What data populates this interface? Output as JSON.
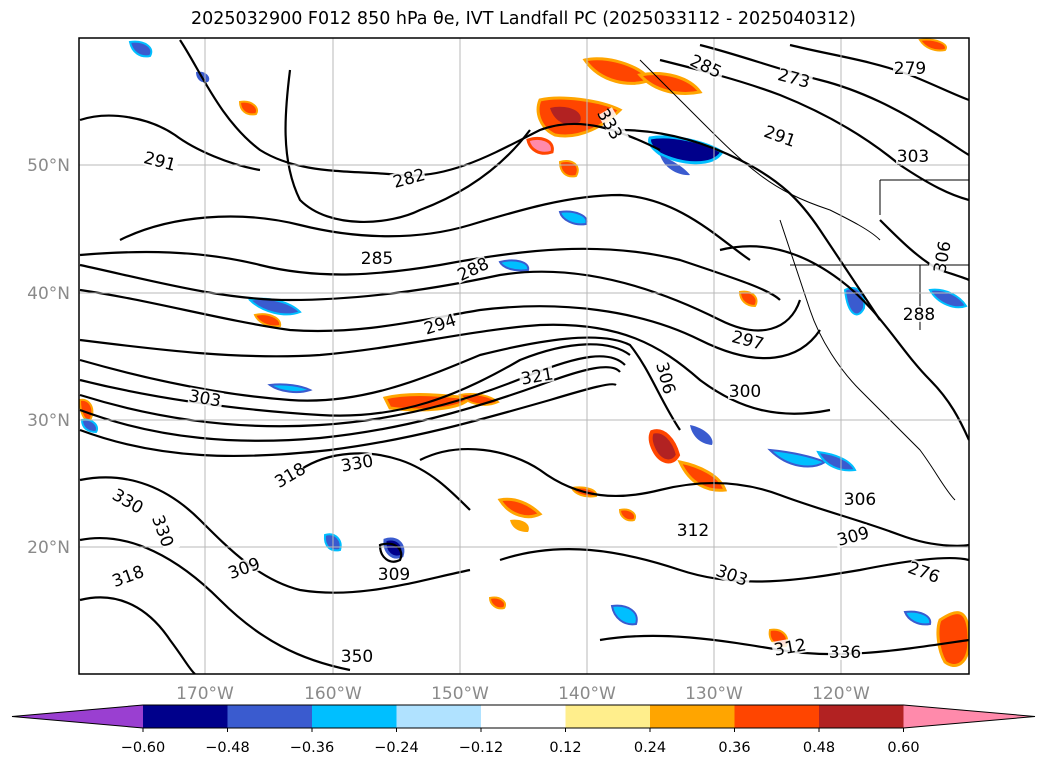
{
  "title": "2025032900 F012 850 hPa θe, IVT Landfall PC (2025033112 - 2025040312)",
  "map": {
    "lat_labels": [
      "50°N",
      "40°N",
      "30°N",
      "20°N"
    ],
    "lon_labels": [
      "170°W",
      "160°W",
      "150°W",
      "140°W",
      "130°W",
      "120°W"
    ],
    "gridlines": true,
    "contour_labels": [
      {
        "text": "291",
        "rot": 15
      },
      {
        "text": "282",
        "rot": -15
      },
      {
        "text": "285",
        "rot": 0
      },
      {
        "text": "288",
        "rot": -25
      },
      {
        "text": "294",
        "rot": -18
      },
      {
        "text": "297",
        "rot": 15
      },
      {
        "text": "300",
        "rot": 0
      },
      {
        "text": "303",
        "rot": 10
      },
      {
        "text": "306",
        "rot": 75
      },
      {
        "text": "321",
        "rot": -10
      },
      {
        "text": "330",
        "rot": -10
      },
      {
        "text": "318",
        "rot": -30
      },
      {
        "text": "309",
        "rot": -20
      },
      {
        "text": "312",
        "rot": 0
      },
      {
        "text": "303",
        "rot": 20
      },
      {
        "text": "306",
        "rot": 0
      },
      {
        "text": "309",
        "rot": -15
      },
      {
        "text": "276",
        "rot": 20
      },
      {
        "text": "273",
        "rot": 15
      },
      {
        "text": "279",
        "rot": 0
      },
      {
        "text": "285",
        "rot": 25
      },
      {
        "text": "303",
        "rot": 0
      },
      {
        "text": "306",
        "rot": -80
      },
      {
        "text": "288",
        "rot": 0
      },
      {
        "text": "291",
        "rot": 20
      },
      {
        "text": "333",
        "rot": 60
      },
      {
        "text": "330",
        "rot": 30
      },
      {
        "text": "330",
        "rot": 70
      },
      {
        "text": "318",
        "rot": -20
      },
      {
        "text": "309",
        "rot": 0
      },
      {
        "text": "312",
        "rot": -10
      },
      {
        "text": "336",
        "rot": 0
      },
      {
        "text": "350",
        "rot": 0
      }
    ]
  },
  "colorbar": {
    "labels": [
      "−0.60",
      "−0.48",
      "−0.36",
      "−0.24",
      "−0.12",
      "0.12",
      "0.24",
      "0.36",
      "0.48",
      "0.60"
    ],
    "colors": [
      "#9a3fd1",
      "#00008b",
      "#3a5bcf",
      "#00bfff",
      "#b0e2ff",
      "#ffffff",
      "#ffee8c",
      "#ffa500",
      "#ff4500",
      "#b22222",
      "#ff8aab"
    ]
  }
}
